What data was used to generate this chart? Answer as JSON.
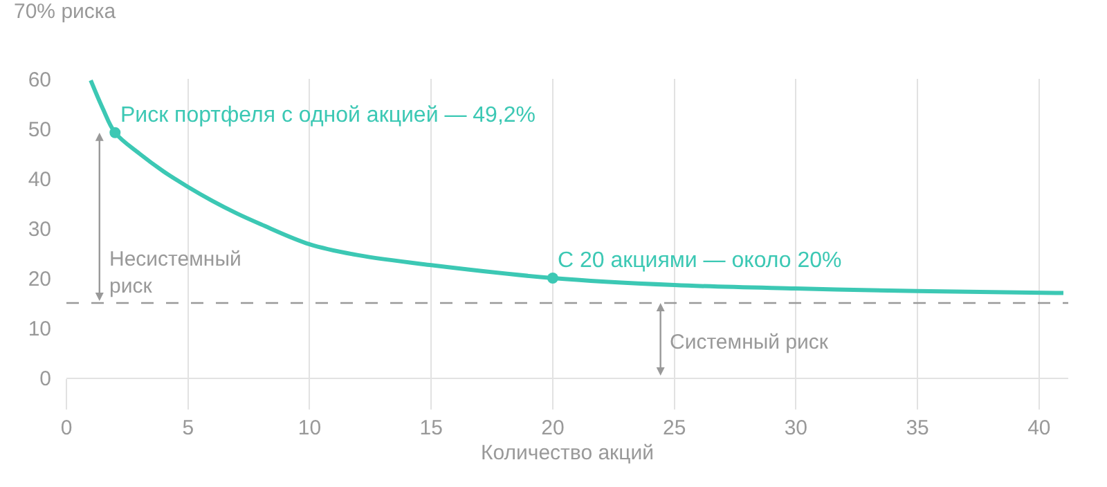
{
  "chart_data": {
    "type": "line",
    "ylabel": "70% риска",
    "xlabel": "Количество акций",
    "x": [
      1,
      1.5,
      2,
      3,
      4,
      5,
      6,
      7,
      8,
      10,
      12,
      15,
      20,
      25,
      30,
      35,
      41
    ],
    "series": [
      {
        "color": "#3cc8b4",
        "values": [
          59.7,
          54,
          49.2,
          45,
          41.4,
          38.3,
          35.5,
          33,
          30.8,
          26.8,
          24.6,
          22.6,
          20,
          18.6,
          17.9,
          17.4,
          17
        ]
      },
      {
        "type": "scatter",
        "color": "#3cc8b4",
        "x": [
          2,
          20
        ],
        "values": [
          49.2,
          20
        ]
      }
    ],
    "xlim": [
      0,
      41.2
    ],
    "xticks": [
      0,
      5,
      10,
      15,
      20,
      25,
      30,
      35,
      40
    ],
    "ylim": [
      0,
      60
    ],
    "yticks": [
      0,
      10,
      20,
      30,
      40,
      50,
      60
    ],
    "grid": "x",
    "line_style": "solid",
    "ref_lines": [
      {
        "axis": "y",
        "value": 15,
        "color": "#999999",
        "line_style": "dashed"
      }
    ],
    "annotations": [
      {
        "text": "Риск портфеля с одной акцией — 49,2%",
        "x": 2,
        "y": 49.2
      },
      {
        "text": "С 20 акциями — около 20%",
        "x": 20,
        "y": 20
      },
      "Несистемный риск",
      "Системный риск"
    ]
  }
}
